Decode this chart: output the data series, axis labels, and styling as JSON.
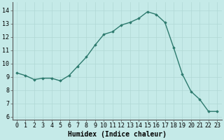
{
  "x": [
    0,
    1,
    2,
    3,
    4,
    5,
    6,
    7,
    8,
    9,
    10,
    11,
    12,
    13,
    14,
    15,
    16,
    17,
    18,
    19,
    20,
    21,
    22,
    23
  ],
  "y": [
    9.3,
    9.1,
    8.8,
    8.9,
    8.9,
    8.7,
    9.1,
    9.8,
    10.5,
    11.4,
    12.2,
    12.4,
    12.9,
    13.1,
    13.4,
    13.9,
    13.7,
    13.1,
    11.2,
    9.2,
    7.9,
    7.3,
    6.4,
    6.4
  ],
  "xlabel": "Humidex (Indice chaleur)",
  "ylim": [
    5.8,
    14.6
  ],
  "xlim": [
    -0.5,
    23.5
  ],
  "yticks": [
    6,
    7,
    8,
    9,
    10,
    11,
    12,
    13,
    14
  ],
  "xticks": [
    0,
    1,
    2,
    3,
    4,
    5,
    6,
    7,
    8,
    9,
    10,
    11,
    12,
    13,
    14,
    15,
    16,
    17,
    18,
    19,
    20,
    21,
    22,
    23
  ],
  "line_color": "#2d7a6e",
  "marker_color": "#2d7a6e",
  "bg_color": "#c5eae8",
  "grid_color": "#b0d8d5",
  "xlabel_fontsize": 7,
  "tick_fontsize": 6,
  "marker": "D",
  "marker_size": 1.8,
  "line_width": 1.0
}
